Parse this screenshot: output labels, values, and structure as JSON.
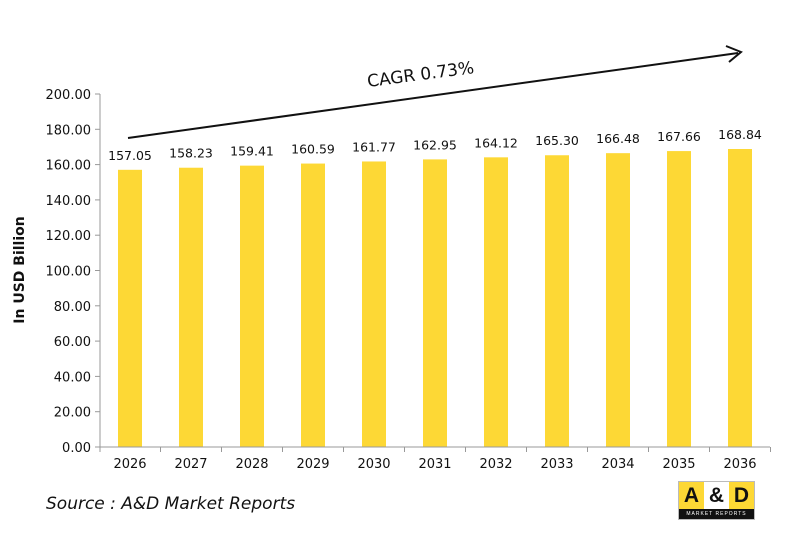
{
  "chart_data": {
    "type": "bar",
    "categories": [
      "2026",
      "2027",
      "2028",
      "2029",
      "2030",
      "2031",
      "2032",
      "2033",
      "2034",
      "2035",
      "2036"
    ],
    "values": [
      157.05,
      158.23,
      159.41,
      160.59,
      161.77,
      162.95,
      164.12,
      165.3,
      166.48,
      167.66,
      168.84
    ],
    "data_labels": [
      "157.05",
      "158.23",
      "159.41",
      "160.59",
      "161.77",
      "162.95",
      "164.12",
      "165.30",
      "166.48",
      "167.66",
      "168.84"
    ],
    "ylabel": "In USD Billion",
    "xlabel": "",
    "ylim": [
      0,
      200
    ],
    "yticks": [
      "0.00",
      "20.00",
      "40.00",
      "60.00",
      "80.00",
      "100.00",
      "120.00",
      "140.00",
      "160.00",
      "180.00",
      "200.00"
    ],
    "grid": false,
    "annotation": "CAGR 0.73%",
    "bar_color": "#FDD835"
  },
  "source": "Source : A&D Market Reports",
  "logo": {
    "left": "A",
    "mid": "&",
    "right": "D",
    "sub": "MARKET REPORTS"
  }
}
